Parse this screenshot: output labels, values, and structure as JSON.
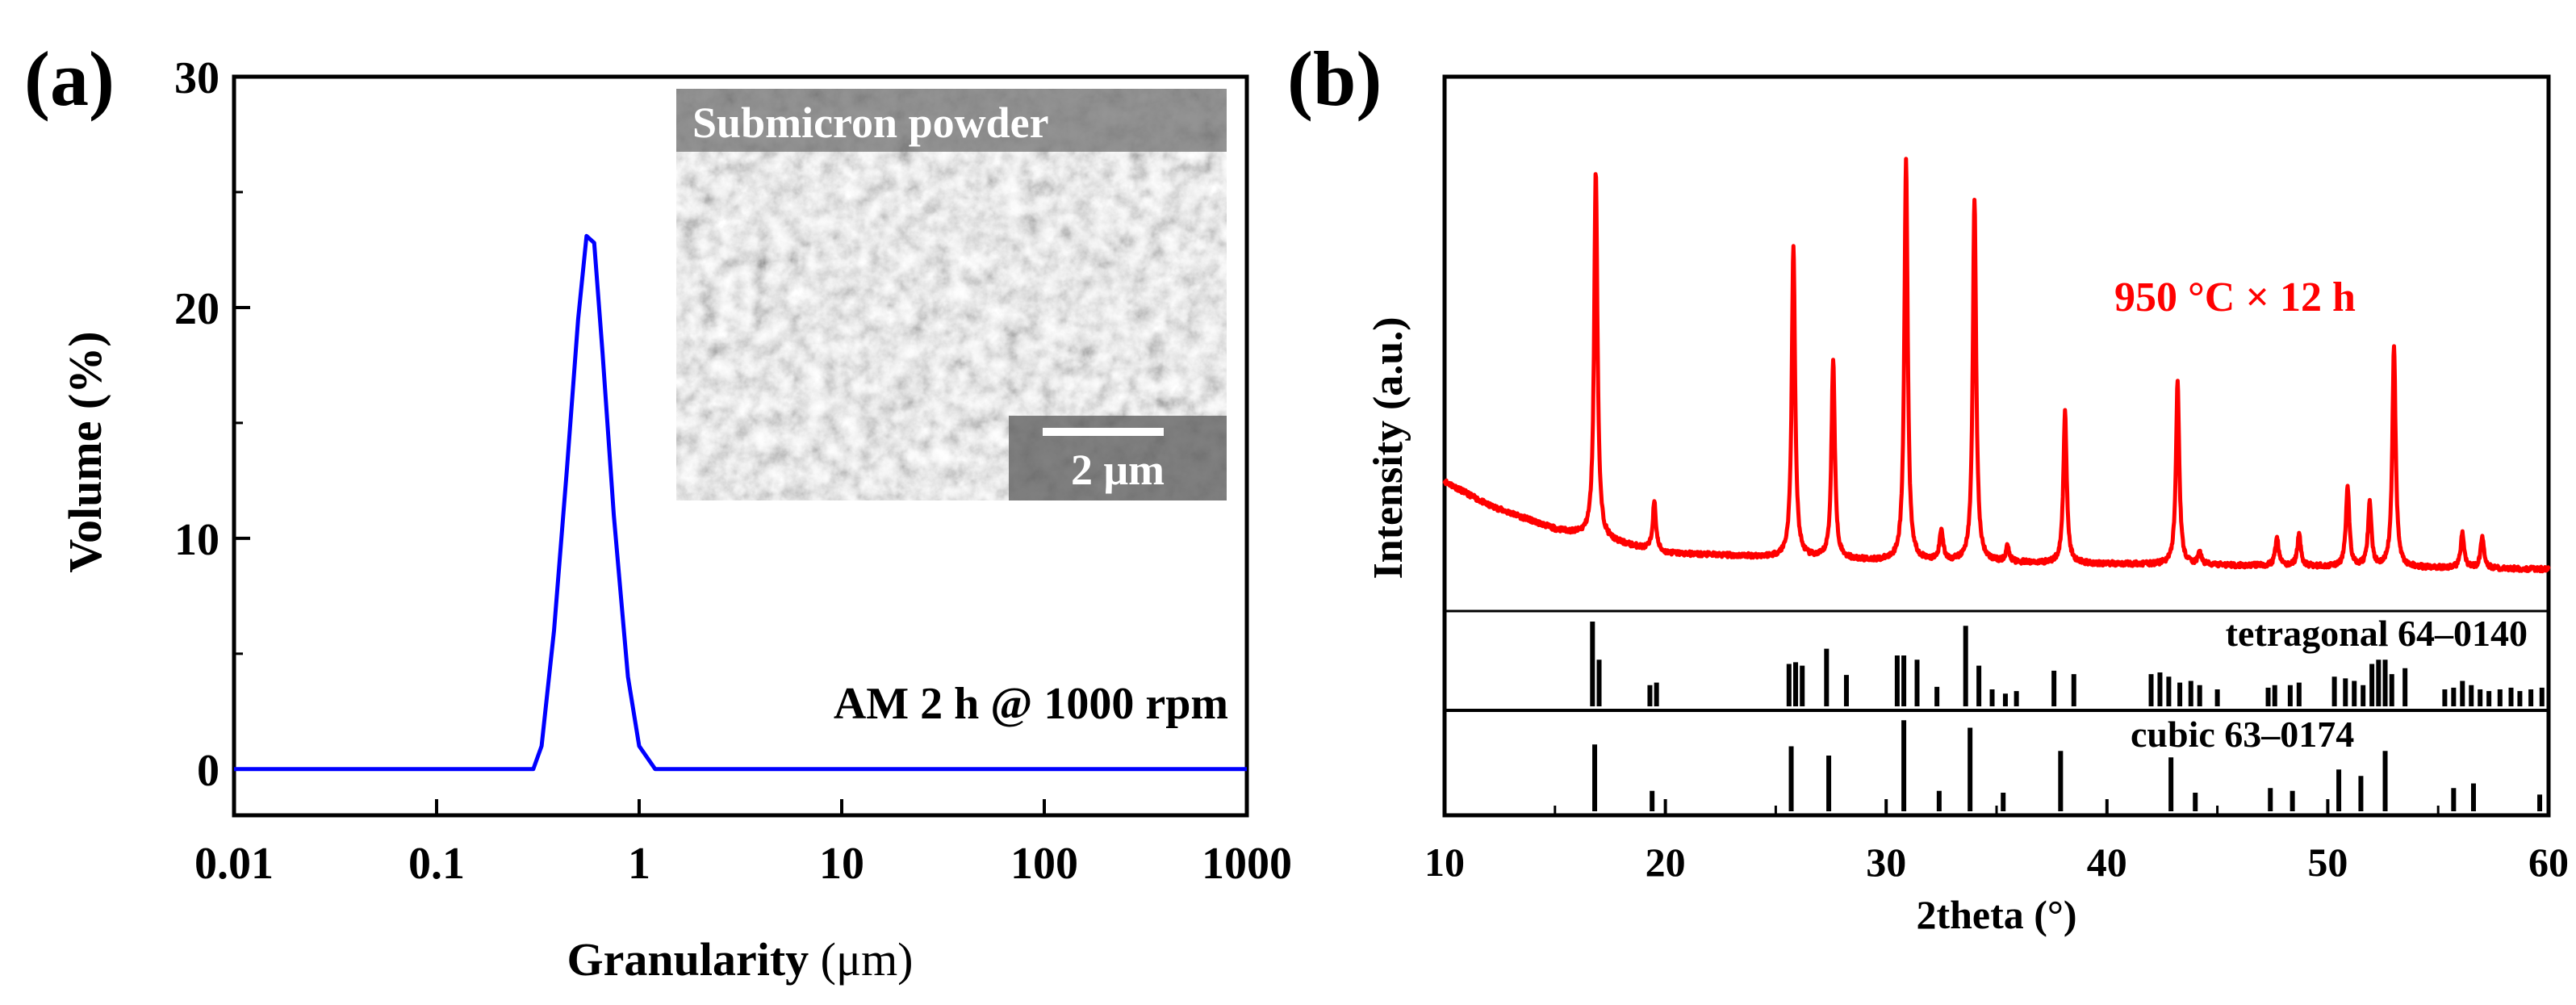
{
  "chart_data": [
    {
      "panel_label": "(a)",
      "type": "line",
      "title": "",
      "xlabel": "Granularity",
      "xlabel_unit": "(μm)",
      "ylabel": "Volume (%)",
      "xscale": "log",
      "xlim": [
        0.01,
        1000
      ],
      "ylim": [
        -2,
        30
      ],
      "x_ticks": [
        0.01,
        0.1,
        1,
        10,
        100,
        1000
      ],
      "x_tick_labels": [
        "0.01",
        "0.1",
        "1",
        "10",
        "100",
        "1000"
      ],
      "y_ticks": [
        0,
        10,
        20,
        30
      ],
      "y_tick_labels": [
        "0",
        "10",
        "20",
        "30"
      ],
      "grid": false,
      "series": [
        {
          "name": "AM 2 h @ 1000 rpm",
          "color": "#0000ff",
          "x": [
            0.01,
            0.3,
            0.33,
            0.38,
            0.44,
            0.5,
            0.55,
            0.6,
            0.66,
            0.75,
            0.88,
            1.0,
            1.2,
            1000
          ],
          "y": [
            0,
            0,
            1.0,
            6.0,
            13.0,
            19.5,
            23.1,
            22.8,
            18.0,
            11.0,
            4.0,
            1.0,
            0,
            0
          ]
        }
      ],
      "annotations": [
        "AM 2 h @ 1000 rpm"
      ],
      "inset": {
        "title": "Submicron powder",
        "scale_bar": "2 μm"
      }
    },
    {
      "panel_label": "(b)",
      "type": "line",
      "title": "",
      "xlabel": "2theta (°)",
      "ylabel": "Intensity (a.u.)",
      "xlim": [
        10,
        60
      ],
      "x_ticks": [
        10,
        20,
        30,
        40,
        50,
        60
      ],
      "x_tick_labels": [
        "10",
        "20",
        "30",
        "40",
        "50",
        "60"
      ],
      "grid": false,
      "series": [
        {
          "name": "950 °C × 12 h",
          "color": "#ff0000",
          "baseline": [
            [
              10,
              0.26
            ],
            [
              12,
              0.2
            ],
            [
              15,
              0.14
            ],
            [
              20,
              0.08
            ],
            [
              30,
              0.06
            ],
            [
              60,
              0.04
            ]
          ],
          "peaks": [
            [
              16.85,
              0.92
            ],
            [
              19.5,
              0.12
            ],
            [
              25.8,
              0.78
            ],
            [
              27.6,
              0.5
            ],
            [
              30.9,
              1.0
            ],
            [
              32.5,
              0.08
            ],
            [
              34.0,
              0.91
            ],
            [
              35.5,
              0.04
            ],
            [
              38.1,
              0.38
            ],
            [
              43.2,
              0.46
            ],
            [
              44.2,
              0.03
            ],
            [
              47.7,
              0.07
            ],
            [
              48.7,
              0.08
            ],
            [
              50.9,
              0.2
            ],
            [
              51.9,
              0.16
            ],
            [
              53.0,
              0.55
            ],
            [
              56.1,
              0.09
            ],
            [
              57.0,
              0.08
            ]
          ]
        }
      ],
      "reference_patterns": [
        {
          "name": "tetragonal 64–0140",
          "lines": [
            [
              16.7,
              1.0
            ],
            [
              17.0,
              0.55
            ],
            [
              19.3,
              0.25
            ],
            [
              19.6,
              0.28
            ],
            [
              25.6,
              0.5
            ],
            [
              25.9,
              0.52
            ],
            [
              26.2,
              0.48
            ],
            [
              27.3,
              0.68
            ],
            [
              28.2,
              0.37
            ],
            [
              30.5,
              0.6
            ],
            [
              30.8,
              0.6
            ],
            [
              31.4,
              0.55
            ],
            [
              32.3,
              0.23
            ],
            [
              33.6,
              0.95
            ],
            [
              34.2,
              0.48
            ],
            [
              34.8,
              0.2
            ],
            [
              35.4,
              0.15
            ],
            [
              35.9,
              0.18
            ],
            [
              37.6,
              0.42
            ],
            [
              38.5,
              0.38
            ],
            [
              42.0,
              0.38
            ],
            [
              42.4,
              0.4
            ],
            [
              42.8,
              0.35
            ],
            [
              43.3,
              0.28
            ],
            [
              43.8,
              0.3
            ],
            [
              44.2,
              0.25
            ],
            [
              45.0,
              0.2
            ],
            [
              47.3,
              0.22
            ],
            [
              47.6,
              0.25
            ],
            [
              48.3,
              0.25
            ],
            [
              48.7,
              0.28
            ],
            [
              50.3,
              0.35
            ],
            [
              50.8,
              0.33
            ],
            [
              51.2,
              0.3
            ],
            [
              51.6,
              0.25
            ],
            [
              52.0,
              0.5
            ],
            [
              52.3,
              0.55
            ],
            [
              52.6,
              0.55
            ],
            [
              52.9,
              0.38
            ],
            [
              53.5,
              0.45
            ],
            [
              55.3,
              0.2
            ],
            [
              55.7,
              0.22
            ],
            [
              56.1,
              0.3
            ],
            [
              56.5,
              0.25
            ],
            [
              56.9,
              0.2
            ],
            [
              57.3,
              0.18
            ],
            [
              57.8,
              0.2
            ],
            [
              58.3,
              0.22
            ],
            [
              58.7,
              0.18
            ],
            [
              59.2,
              0.2
            ],
            [
              59.7,
              0.22
            ]
          ]
        },
        {
          "name": "cubic 63–0174",
          "lines": [
            [
              16.8,
              0.72
            ],
            [
              19.4,
              0.22
            ],
            [
              25.7,
              0.7
            ],
            [
              27.4,
              0.6
            ],
            [
              30.8,
              0.98
            ],
            [
              32.4,
              0.22
            ],
            [
              33.8,
              0.9
            ],
            [
              35.3,
              0.2
            ],
            [
              37.9,
              0.65
            ],
            [
              42.9,
              0.58
            ],
            [
              44.0,
              0.2
            ],
            [
              47.4,
              0.25
            ],
            [
              48.4,
              0.22
            ],
            [
              50.5,
              0.45
            ],
            [
              51.5,
              0.38
            ],
            [
              52.6,
              0.65
            ],
            [
              55.7,
              0.25
            ],
            [
              56.6,
              0.3
            ],
            [
              59.6,
              0.18
            ]
          ]
        }
      ],
      "annotations": [
        "950 °C × 12 h"
      ]
    }
  ],
  "colors": {
    "psd_line": "#0000ff",
    "xrd_line": "#ff0000",
    "axes": "#000000",
    "annotation_red": "#ff0000"
  }
}
